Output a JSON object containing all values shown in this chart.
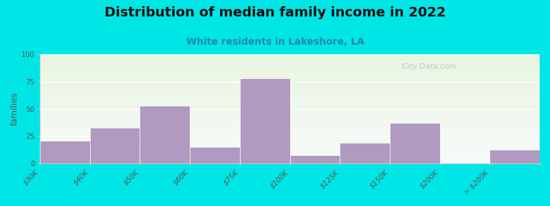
{
  "title": "Distribution of median family income in 2022",
  "subtitle": "White residents in Lakeshore, LA",
  "ylabel": "families",
  "categories": [
    "$30K",
    "$40K",
    "$50K",
    "$60K",
    "$75K",
    "$100K",
    "$125K",
    "$150K",
    "$200K",
    "> $200K"
  ],
  "values": [
    21,
    33,
    53,
    15,
    78,
    8,
    19,
    37,
    0,
    13
  ],
  "bar_color": "#b09abf",
  "background_outer": "#00e5e5",
  "ylim": [
    0,
    100
  ],
  "yticks": [
    0,
    25,
    50,
    75,
    100
  ],
  "title_fontsize": 14,
  "subtitle_fontsize": 10,
  "ylabel_fontsize": 9,
  "tick_fontsize": 7.5,
  "watermark": " City-Data.com"
}
